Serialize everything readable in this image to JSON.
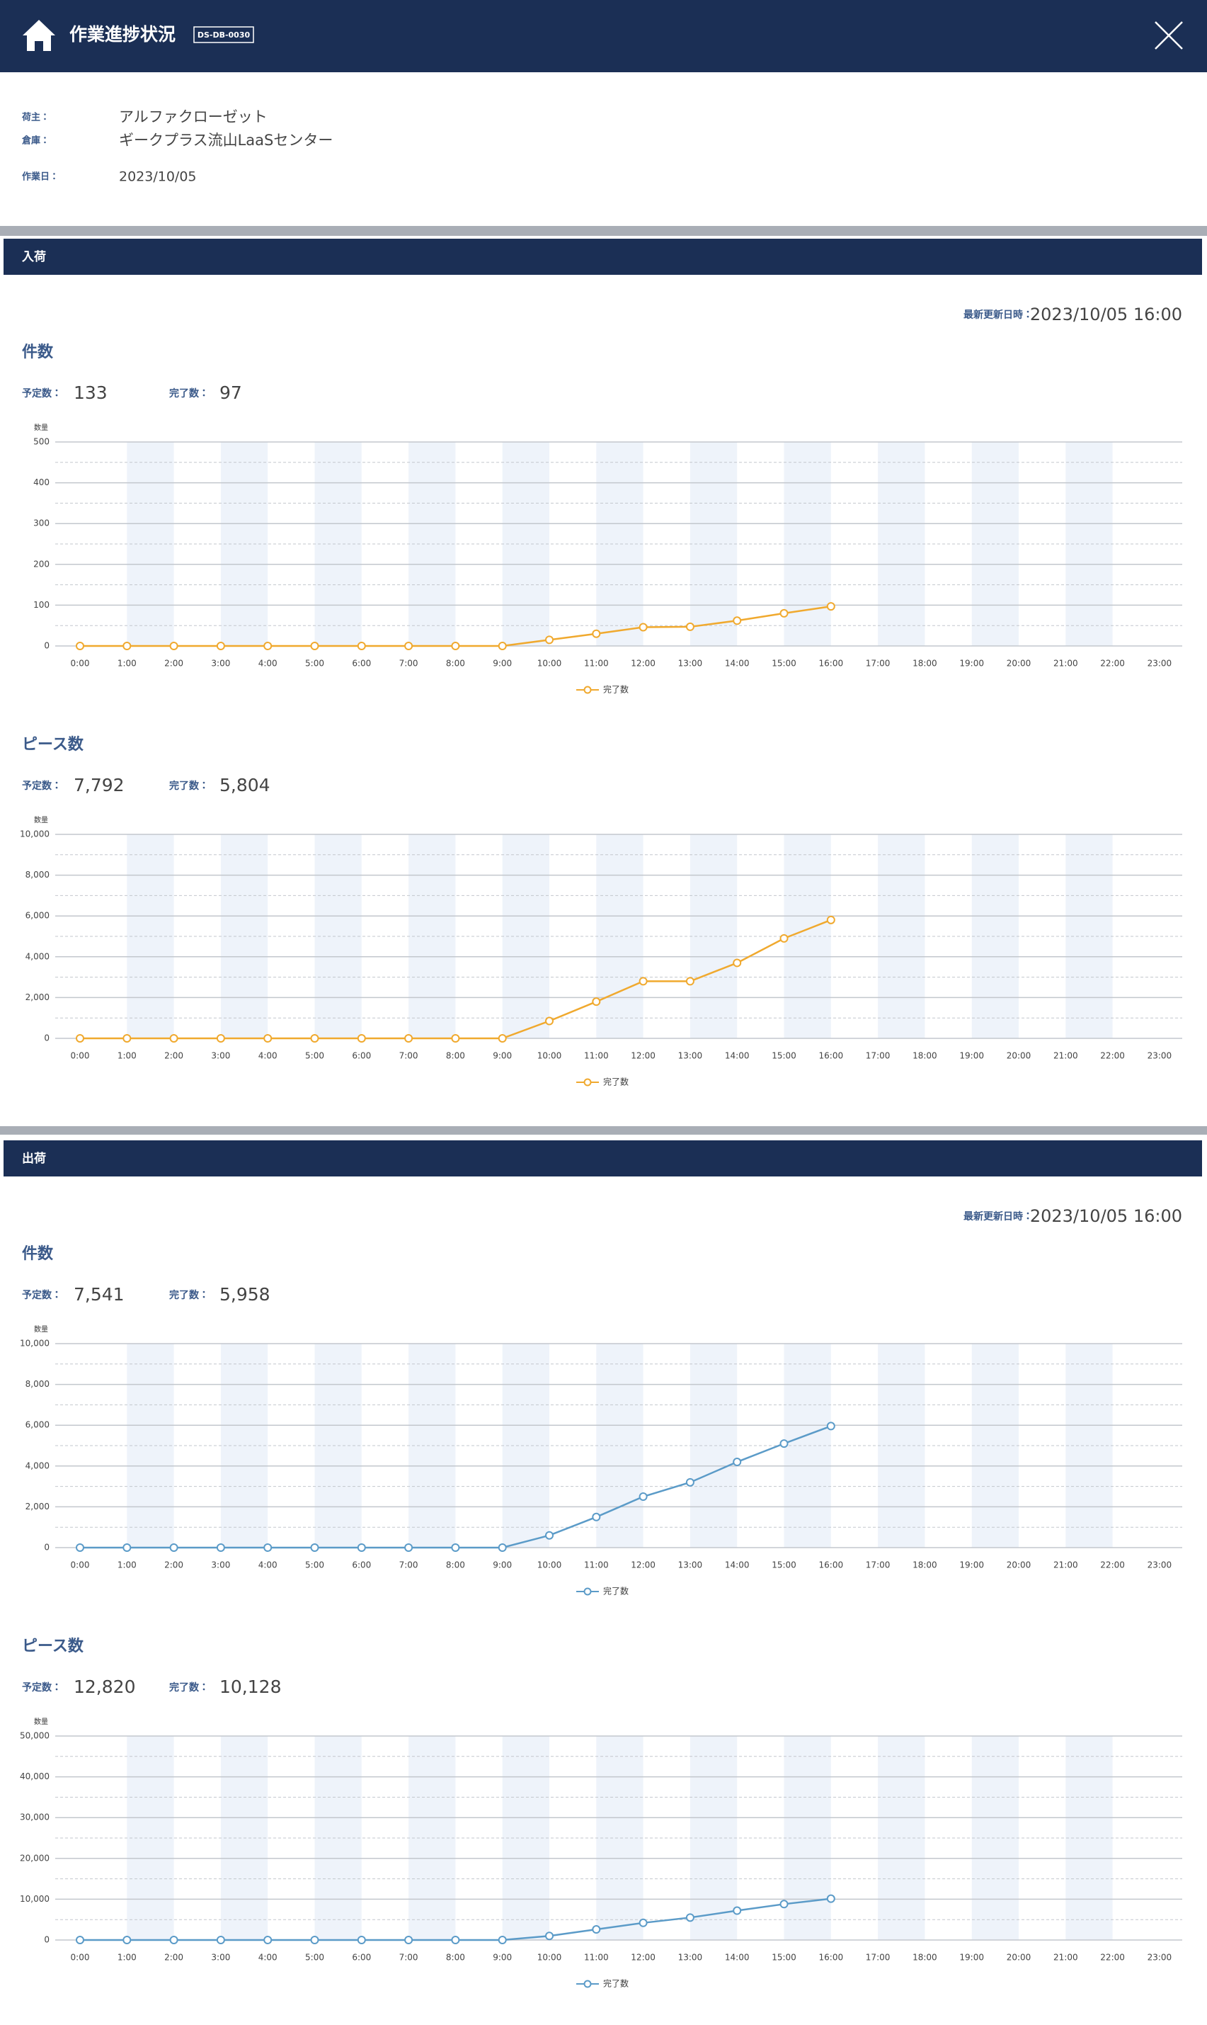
{
  "header": {
    "title": "作業進捗状況",
    "code": "DS-DB-0030"
  },
  "info": [
    {
      "label": "荷主：",
      "value": "アルファクローゼット"
    },
    {
      "label": "倉庫：",
      "value": "ギークプラス流山LaaSセンター"
    },
    {
      "label": "作業日：",
      "value": "2023/10/05"
    }
  ],
  "sections": [
    {
      "title": "入荷",
      "updated_label": "最新更新日時：",
      "updated": "2023/10/05 16:00",
      "charts": [
        {
          "type": "line",
          "title": "件数",
          "planned_label": "予定数：",
          "planned": "133",
          "done_label": "完了数：",
          "done": "97",
          "ylabel": "数量",
          "categories": [
            "0:00",
            "1:00",
            "2:00",
            "3:00",
            "4:00",
            "5:00",
            "6:00",
            "7:00",
            "8:00",
            "9:00",
            "10:00",
            "11:00",
            "12:00",
            "13:00",
            "14:00",
            "15:00",
            "16:00",
            "17:00",
            "18:00",
            "19:00",
            "20:00",
            "21:00",
            "22:00",
            "23:00"
          ],
          "series": [
            {
              "name": "完了数",
              "color": "#f0a92e",
              "values": [
                0,
                0,
                0,
                0,
                0,
                0,
                0,
                0,
                0,
                0,
                15,
                30,
                46,
                47,
                62,
                80,
                97,
                null,
                null,
                null,
                null,
                null,
                null,
                null
              ]
            }
          ],
          "ylim": [
            0,
            500
          ],
          "yticks": [
            0,
            100,
            200,
            300,
            400,
            500
          ],
          "grid": true
        },
        {
          "type": "line",
          "title": "ピース数",
          "planned_label": "予定数：",
          "planned": "7,792",
          "done_label": "完了数：",
          "done": "5,804",
          "ylabel": "数量",
          "categories": [
            "0:00",
            "1:00",
            "2:00",
            "3:00",
            "4:00",
            "5:00",
            "6:00",
            "7:00",
            "8:00",
            "9:00",
            "10:00",
            "11:00",
            "12:00",
            "13:00",
            "14:00",
            "15:00",
            "16:00",
            "17:00",
            "18:00",
            "19:00",
            "20:00",
            "21:00",
            "22:00",
            "23:00"
          ],
          "series": [
            {
              "name": "完了数",
              "color": "#f0a92e",
              "values": [
                0,
                0,
                0,
                0,
                0,
                0,
                0,
                0,
                0,
                0,
                850,
                1800,
                2800,
                2800,
                3700,
                4900,
                5804,
                null,
                null,
                null,
                null,
                null,
                null,
                null
              ]
            }
          ],
          "ylim": [
            0,
            10000
          ],
          "yticks": [
            0,
            {
              "value": 2000,
              "label": "2,000"
            },
            {
              "value": 4000,
              "label": "4,000"
            },
            {
              "value": 6000,
              "label": "6,000"
            },
            {
              "value": 8000,
              "label": "8,000"
            },
            {
              "value": 10000,
              "label": "10,000"
            }
          ],
          "grid": true
        }
      ]
    },
    {
      "title": "出荷",
      "updated_label": "最新更新日時：",
      "updated": "2023/10/05 16:00",
      "charts": [
        {
          "type": "line",
          "title": "件数",
          "planned_label": "予定数：",
          "planned": "7,541",
          "done_label": "完了数：",
          "done": "5,958",
          "ylabel": "数量",
          "categories": [
            "0:00",
            "1:00",
            "2:00",
            "3:00",
            "4:00",
            "5:00",
            "6:00",
            "7:00",
            "8:00",
            "9:00",
            "10:00",
            "11:00",
            "12:00",
            "13:00",
            "14:00",
            "15:00",
            "16:00",
            "17:00",
            "18:00",
            "19:00",
            "20:00",
            "21:00",
            "22:00",
            "23:00"
          ],
          "series": [
            {
              "name": "完了数",
              "color": "#5b9bc8",
              "values": [
                0,
                0,
                0,
                0,
                0,
                0,
                0,
                0,
                0,
                0,
                600,
                1500,
                2500,
                3200,
                4200,
                5100,
                5958,
                null,
                null,
                null,
                null,
                null,
                null,
                null
              ]
            }
          ],
          "ylim": [
            0,
            10000
          ],
          "yticks": [
            0,
            {
              "value": 2000,
              "label": "2,000"
            },
            {
              "value": 4000,
              "label": "4,000"
            },
            {
              "value": 6000,
              "label": "6,000"
            },
            {
              "value": 8000,
              "label": "8,000"
            },
            {
              "value": 10000,
              "label": "10,000"
            }
          ],
          "grid": true
        },
        {
          "type": "line",
          "title": "ピース数",
          "planned_label": "予定数：",
          "planned": "12,820",
          "done_label": "完了数：",
          "done": "10,128",
          "ylabel": "数量",
          "categories": [
            "0:00",
            "1:00",
            "2:00",
            "3:00",
            "4:00",
            "5:00",
            "6:00",
            "7:00",
            "8:00",
            "9:00",
            "10:00",
            "11:00",
            "12:00",
            "13:00",
            "14:00",
            "15:00",
            "16:00",
            "17:00",
            "18:00",
            "19:00",
            "20:00",
            "21:00",
            "22:00",
            "23:00"
          ],
          "series": [
            {
              "name": "完了数",
              "color": "#5b9bc8",
              "values": [
                0,
                0,
                0,
                0,
                0,
                0,
                0,
                0,
                0,
                0,
                1000,
                2600,
                4200,
                5500,
                7200,
                8800,
                10128,
                null,
                null,
                null,
                null,
                null,
                null,
                null
              ]
            }
          ],
          "ylim": [
            0,
            50000
          ],
          "yticks": [
            0,
            {
              "value": 10000,
              "label": "10,000"
            },
            {
              "value": 20000,
              "label": "20,000"
            },
            {
              "value": 30000,
              "label": "30,000"
            },
            {
              "value": 40000,
              "label": "40,000"
            },
            {
              "value": 50000,
              "label": "50,000"
            }
          ],
          "grid": true
        }
      ]
    }
  ]
}
